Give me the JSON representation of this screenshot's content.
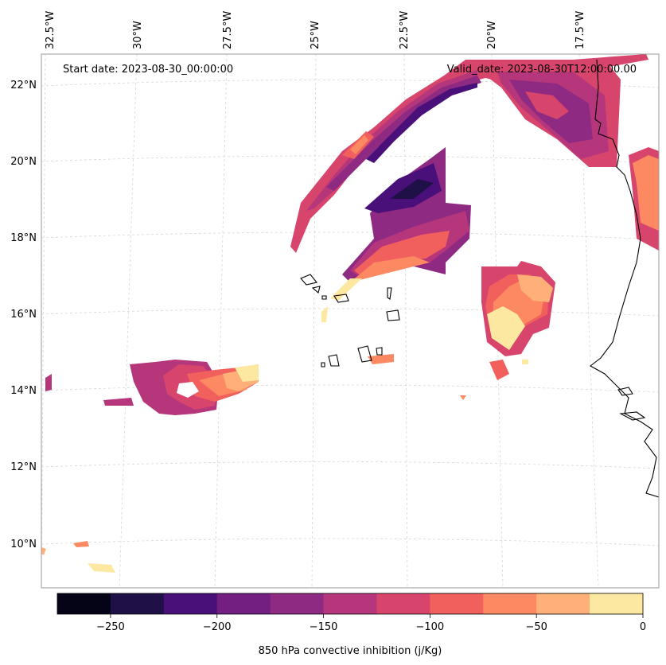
{
  "header": {
    "start_date": "Start date: 2023-08-30_00:00:00",
    "valid_date": "Valid_date: 2023-08-30T12:00:00.00"
  },
  "axes": {
    "lon_labels": [
      "32.5°W",
      "30°W",
      "27.5°W",
      "25°W",
      "22.5°W",
      "20°W",
      "17.5°W"
    ],
    "lat_labels": [
      "22°N",
      "20°N",
      "18°N",
      "16°N",
      "14°N",
      "12°N",
      "10°N"
    ]
  },
  "colorbar": {
    "label": "850 hPa convective inhibition (j/Kg)",
    "ticks": [
      "−250",
      "−200",
      "−150",
      "−100",
      "−50",
      "0"
    ],
    "tick_values": [
      -250,
      -200,
      -150,
      -100,
      -50,
      0
    ],
    "levels": [
      -275,
      -250,
      -225,
      -200,
      -175,
      -150,
      -125,
      -100,
      -75,
      -50,
      -25,
      0
    ],
    "colors": [
      "#050417",
      "#1f1147",
      "#4a1079",
      "#721f81",
      "#8f2a82",
      "#b5367a",
      "#d8456c",
      "#f1605d",
      "#fc8961",
      "#feb078",
      "#fde8a2"
    ]
  },
  "palette": {
    "coast": "#000000",
    "grid": "#d6d6d6",
    "frame": "#9a9a9a"
  }
}
